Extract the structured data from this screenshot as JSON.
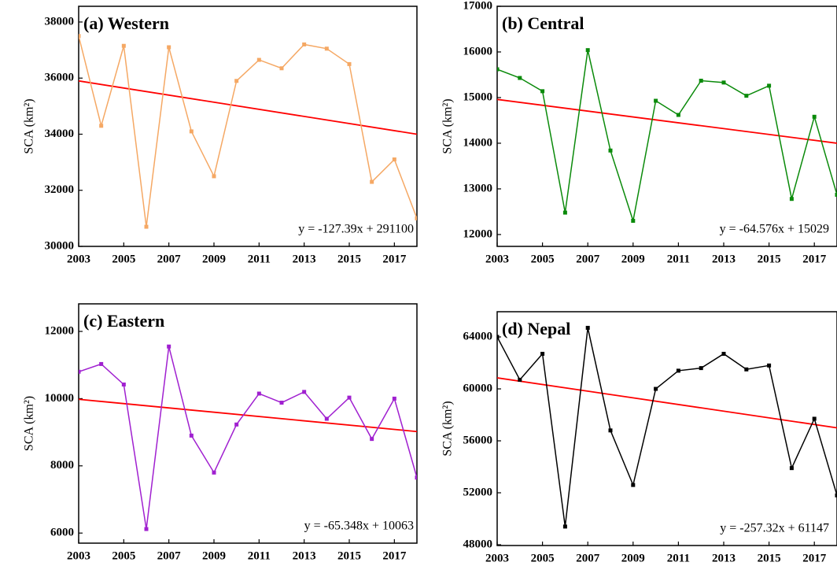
{
  "chart_data": [
    {
      "type": "line",
      "title": "(a) Western",
      "ylabel": "SCA (km²)",
      "annotation": "y = -127.39x + 291100",
      "x": [
        2003,
        2004,
        2005,
        2006,
        2007,
        2008,
        2009,
        2010,
        2011,
        2012,
        2013,
        2014,
        2015,
        2016,
        2017,
        2018
      ],
      "series": [
        {
          "color": "#f5a864",
          "values": [
            37500,
            34300,
            37150,
            30700,
            37100,
            34100,
            32500,
            35900,
            36650,
            36350,
            37200,
            37050,
            36500,
            32300,
            33100,
            31000
          ]
        }
      ],
      "trend_line": {
        "color": "#ff0000",
        "x": [
          2003,
          2018
        ],
        "values": [
          35900,
          34000
        ]
      },
      "xlim": [
        2003,
        2018
      ],
      "xticks": [
        2003,
        2005,
        2007,
        2009,
        2011,
        2013,
        2015,
        2017
      ],
      "ylim": [
        30000,
        38560
      ],
      "yticks": [
        30000,
        32000,
        34000,
        36000,
        38000
      ]
    },
    {
      "type": "line",
      "title": "(b) Central",
      "ylabel": "SCA (km²)",
      "annotation": "y = -64.576x + 15029",
      "x": [
        2003,
        2004,
        2005,
        2006,
        2007,
        2008,
        2009,
        2010,
        2011,
        2012,
        2013,
        2014,
        2015,
        2016,
        2017,
        2018
      ],
      "series": [
        {
          "color": "#0a8a0a",
          "values": [
            15620,
            15430,
            15140,
            12480,
            16040,
            13840,
            12300,
            14930,
            14620,
            15370,
            15330,
            15040,
            15260,
            12780,
            14580,
            12870
          ]
        }
      ],
      "trend_line": {
        "color": "#ff0000",
        "x": [
          2003,
          2018
        ],
        "values": [
          14960,
          14000
        ]
      },
      "xlim": [
        2003,
        2018
      ],
      "xticks": [
        2003,
        2005,
        2007,
        2009,
        2011,
        2013,
        2015,
        2017
      ],
      "ylim": [
        11740,
        17000
      ],
      "yticks": [
        12000,
        13000,
        14000,
        15000,
        16000,
        17000
      ]
    },
    {
      "type": "line",
      "title": "(c) Eastern",
      "ylabel": "SCA (km²)",
      "annotation": "y = -65.348x + 10063",
      "x": [
        2003,
        2004,
        2005,
        2006,
        2007,
        2008,
        2009,
        2010,
        2011,
        2012,
        2013,
        2014,
        2015,
        2016,
        2017,
        2018
      ],
      "series": [
        {
          "color": "#a020d0",
          "values": [
            10800,
            11030,
            10420,
            6120,
            11550,
            8900,
            7800,
            9230,
            10150,
            9880,
            10200,
            9400,
            10030,
            8800,
            10000,
            7650
          ]
        }
      ],
      "trend_line": {
        "color": "#ff0000",
        "x": [
          2003,
          2018
        ],
        "values": [
          9980,
          9020
        ]
      },
      "xlim": [
        2003,
        2018
      ],
      "xticks": [
        2003,
        2005,
        2007,
        2009,
        2011,
        2013,
        2015,
        2017
      ],
      "ylim": [
        5700,
        12820
      ],
      "yticks": [
        6000,
        8000,
        10000,
        12000
      ]
    },
    {
      "type": "line",
      "title": "(d) Nepal",
      "ylabel": "SCA (km²)",
      "annotation": "y = -257.32x + 61147",
      "x": [
        2003,
        2004,
        2005,
        2006,
        2007,
        2008,
        2009,
        2010,
        2011,
        2012,
        2013,
        2014,
        2015,
        2016,
        2017,
        2018
      ],
      "series": [
        {
          "color": "#000000",
          "values": [
            64000,
            60700,
            62700,
            49400,
            64700,
            56800,
            52600,
            60000,
            61400,
            61600,
            62700,
            61500,
            61800,
            53900,
            57700,
            51800
          ]
        }
      ],
      "trend_line": {
        "color": "#ff0000",
        "x": [
          2003,
          2018
        ],
        "values": [
          60850,
          57000
        ]
      },
      "xlim": [
        2003,
        2018
      ],
      "xticks": [
        2003,
        2005,
        2007,
        2009,
        2011,
        2013,
        2015,
        2017
      ],
      "ylim": [
        47940,
        65940
      ],
      "yticks": [
        48000,
        52000,
        56000,
        60000,
        64000
      ]
    }
  ]
}
